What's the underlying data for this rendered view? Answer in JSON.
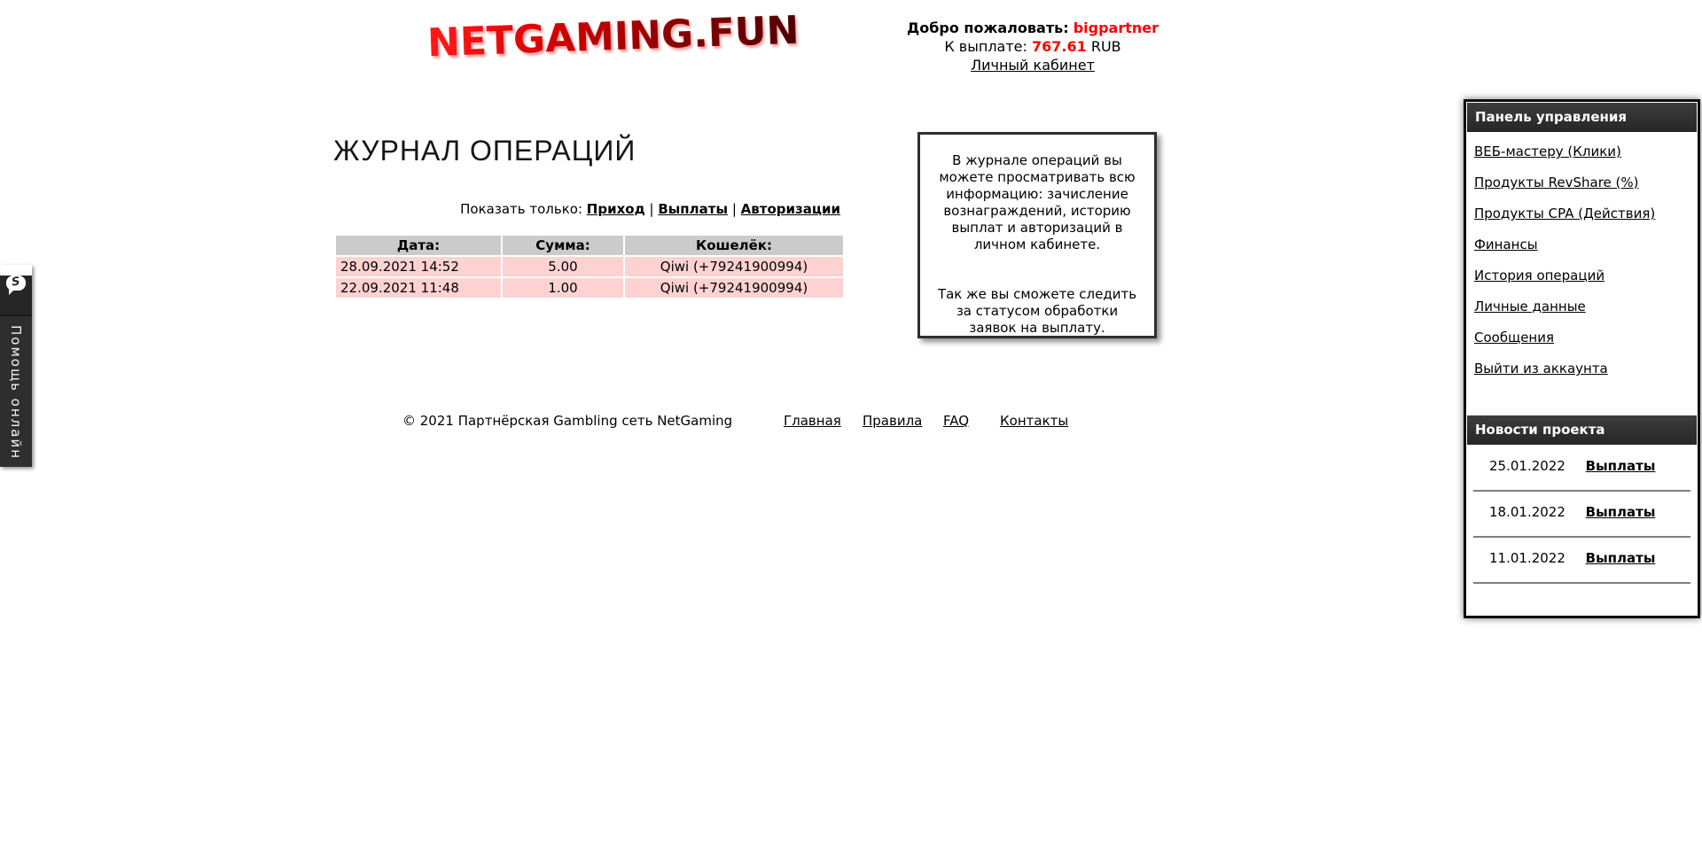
{
  "brand": {
    "logo_text": "NETGAMING.FUN"
  },
  "header": {
    "welcome_label": "Добро пожаловать:",
    "username": "bigpartner",
    "payout_label": "К выплате:",
    "payout_amount": "767.61",
    "payout_currency": "RUB",
    "cabinet_link": "Личный кабинет"
  },
  "help_tab": {
    "label": "Помощь онлайн",
    "icon_letter": "S"
  },
  "main": {
    "title": "ЖУРНАЛ ОПЕРАЦИЙ",
    "filter": {
      "label": "Показать только:",
      "separator": "|",
      "links": [
        "Приход",
        "Выплаты",
        "Авторизации"
      ]
    },
    "table": {
      "headers": [
        "Дата:",
        "Сумма:",
        "Кошелёк:"
      ],
      "rows": [
        {
          "date": "28.09.2021 14:52",
          "amount": "5.00",
          "wallet": "Qiwi (+79241900994)"
        },
        {
          "date": "22.09.2021 11:48",
          "amount": "1.00",
          "wallet": "Qiwi (+79241900994)"
        }
      ]
    },
    "info_box": {
      "paragraph1": "В журнале операций вы можете просматривать всю информацию: зачисление вознаграждений, историю выплат и авторизаций в личном кабинете.",
      "paragraph2": "Так же вы сможете следить за статусом обработки заявок на выплату."
    }
  },
  "sidebar": {
    "panel_title": "Панель управления",
    "menu": [
      {
        "label": "ВЕБ-мастеру (Клики)"
      },
      {
        "label": "Продукты RevShare (%)"
      },
      {
        "label": "Продукты CPA (Действия)"
      },
      {
        "label": "Финансы"
      },
      {
        "label": "История операций"
      },
      {
        "label": "Личные данные"
      },
      {
        "label": "Сообщения"
      },
      {
        "label": "Выйти из аккаунта"
      }
    ],
    "news_title": "Новости проекта",
    "news": [
      {
        "date": "25.01.2022",
        "link": "Выплаты"
      },
      {
        "date": "18.01.2022",
        "link": "Выплаты"
      },
      {
        "date": "11.01.2022",
        "link": "Выплаты"
      }
    ]
  },
  "footer": {
    "copyright": "© 2021 Партнёрская Gambling сеть NetGaming",
    "links": [
      "Главная",
      "Правила",
      "FAQ",
      "Контакты"
    ]
  },
  "colors": {
    "accent_red": "#ff0000",
    "logo_red_light": "#ff1616",
    "logo_red_dark": "#4a0000",
    "table_header_bg": "#cbcbcb",
    "table_row_bg": "#ffd2d2",
    "dark_bar": "#313131"
  }
}
